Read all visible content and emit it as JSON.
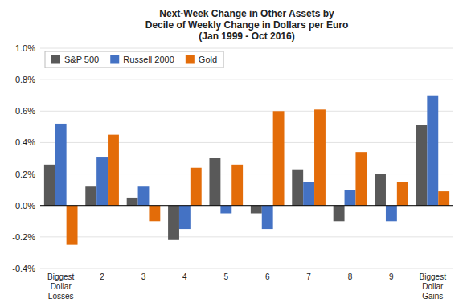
{
  "chart_data": {
    "type": "bar",
    "title": "Next-Week Change in Other Assets by\nDecile of Weekly Change in Dollars per Euro\n(Jan 1999 - Oct 2016)",
    "categories": [
      "Biggest\nDollar\nLosses",
      "2",
      "3",
      "4",
      "5",
      "6",
      "7",
      "8",
      "9",
      "Biggest\nDollar\nGains"
    ],
    "series": [
      {
        "name": "S&P 500",
        "color": "#595959",
        "values": [
          0.0026,
          0.0012,
          0.0005,
          -0.0022,
          0.003,
          -0.0005,
          0.0023,
          -0.001,
          0.002,
          0.0051
        ]
      },
      {
        "name": "Russell 2000",
        "color": "#4472C4",
        "values": [
          0.0052,
          0.0031,
          0.0012,
          -0.0015,
          -0.0005,
          -0.0015,
          0.0015,
          0.001,
          -0.001,
          0.007
        ]
      },
      {
        "name": "Gold",
        "color": "#E36C09",
        "values": [
          -0.0025,
          0.0045,
          -0.001,
          0.0024,
          0.0026,
          0.006,
          0.0061,
          0.0034,
          0.0015,
          0.0009
        ]
      }
    ],
    "ylim": [
      -0.004,
      0.01
    ],
    "yticks": [
      {
        "value": -0.004,
        "label": "-0.4%"
      },
      {
        "value": -0.002,
        "label": "-0.2%"
      },
      {
        "value": 0.0,
        "label": "0.0%"
      },
      {
        "value": 0.002,
        "label": "0.2%"
      },
      {
        "value": 0.004,
        "label": "0.4%"
      },
      {
        "value": 0.006,
        "label": "0.6%"
      },
      {
        "value": 0.008,
        "label": "0.8%"
      },
      {
        "value": 0.01,
        "label": "1.0%"
      }
    ],
    "grid": true,
    "legend": "upper left"
  }
}
